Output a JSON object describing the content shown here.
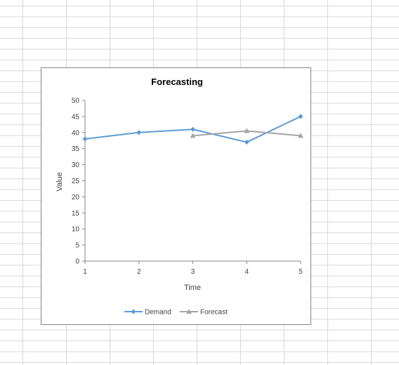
{
  "chart_data": {
    "type": "line",
    "title": "Forecasting",
    "xlabel": "Time",
    "ylabel": "Value",
    "x": [
      1,
      2,
      3,
      4,
      5
    ],
    "ylim": [
      0,
      50
    ],
    "yticks": [
      0,
      5,
      10,
      15,
      20,
      25,
      30,
      35,
      40,
      45,
      50
    ],
    "grid": false,
    "legend_position": "bottom",
    "series": [
      {
        "name": "Demand",
        "x": [
          1,
          2,
          3,
          4,
          5
        ],
        "values": [
          38,
          40,
          41,
          37,
          45
        ],
        "color": "#5b9bd5",
        "marker": "diamond"
      },
      {
        "name": "Forecast",
        "x": [
          3,
          4,
          5
        ],
        "values": [
          39,
          40.5,
          39
        ],
        "color": "#a5a5a5",
        "marker": "triangle"
      }
    ]
  }
}
